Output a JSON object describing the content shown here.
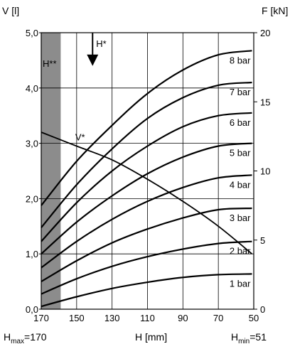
{
  "chart_data": {
    "type": "line",
    "x_axis": {
      "label": "H [mm]",
      "range": [
        170,
        50
      ],
      "ticks": [
        170,
        150,
        130,
        110,
        90,
        70,
        50
      ],
      "tick_labels": [
        "170",
        "150",
        "130",
        "110",
        "90",
        "70",
        "50"
      ]
    },
    "y_left": {
      "label": "V [l]",
      "range": [
        0,
        5
      ],
      "ticks": [
        0,
        1,
        2,
        3,
        4,
        5
      ],
      "tick_labels": [
        "0,0",
        "1,0",
        "2,0",
        "3,0",
        "4,0",
        "5,0"
      ]
    },
    "y_right": {
      "label": "F [kN]",
      "range": [
        0,
        20
      ],
      "ticks": [
        0,
        5,
        10,
        15,
        20
      ],
      "tick_labels": [
        "0",
        "5",
        "10",
        "15",
        "20"
      ]
    },
    "grid": true,
    "shaded_region": {
      "label": "H**",
      "x_range": [
        170,
        159
      ],
      "color": "#8c8c8c"
    },
    "arrow_annotation": {
      "label": "H*",
      "x": 141,
      "y_from": 20,
      "y_to": 17.8
    },
    "volume_curve": {
      "label": "V*",
      "axis": "left",
      "x": [
        170,
        150,
        130,
        110,
        90,
        70,
        51
      ],
      "y": [
        3.2,
        2.95,
        2.7,
        2.35,
        1.95,
        1.5,
        1.0
      ]
    },
    "series": [
      {
        "name": "1 bar",
        "x": [
          170,
          150,
          130,
          110,
          90,
          70,
          51
        ],
        "y": [
          0.2,
          0.9,
          1.5,
          1.95,
          2.3,
          2.5,
          2.55
        ]
      },
      {
        "name": "2 bar",
        "x": [
          170,
          150,
          130,
          110,
          90,
          70,
          51
        ],
        "y": [
          1.1,
          2.2,
          3.1,
          3.8,
          4.35,
          4.75,
          4.9
        ]
      },
      {
        "name": "3 bar",
        "x": [
          170,
          150,
          130,
          110,
          90,
          70,
          51
        ],
        "y": [
          2.0,
          3.5,
          4.8,
          5.8,
          6.6,
          7.2,
          7.3
        ]
      },
      {
        "name": "4 bar",
        "x": [
          170,
          150,
          130,
          110,
          90,
          70,
          51
        ],
        "y": [
          3.0,
          4.9,
          6.5,
          7.8,
          8.8,
          9.5,
          9.7
        ]
      },
      {
        "name": "5 bar",
        "x": [
          170,
          150,
          130,
          110,
          90,
          70,
          51
        ],
        "y": [
          4.0,
          6.3,
          8.2,
          9.8,
          11.0,
          11.8,
          12.0
        ]
      },
      {
        "name": "6 bar",
        "x": [
          170,
          150,
          130,
          110,
          90,
          70,
          51
        ],
        "y": [
          4.9,
          7.7,
          10.0,
          11.8,
          13.2,
          14.0,
          14.2
        ]
      },
      {
        "name": "7 bar",
        "x": [
          170,
          150,
          130,
          110,
          90,
          70,
          51
        ],
        "y": [
          5.9,
          9.0,
          11.6,
          13.8,
          15.3,
          16.2,
          16.4
        ]
      },
      {
        "name": "8 bar",
        "x": [
          170,
          150,
          130,
          110,
          90,
          70,
          51
        ],
        "y": [
          7.5,
          10.7,
          13.3,
          15.6,
          17.3,
          18.4,
          18.7
        ]
      }
    ]
  },
  "labels": {
    "hmax_main": "H",
    "hmax_sub": "max",
    "hmax_val": "=170",
    "hmin_main": "H",
    "hmin_sub": "min",
    "hmin_val": "=51"
  }
}
